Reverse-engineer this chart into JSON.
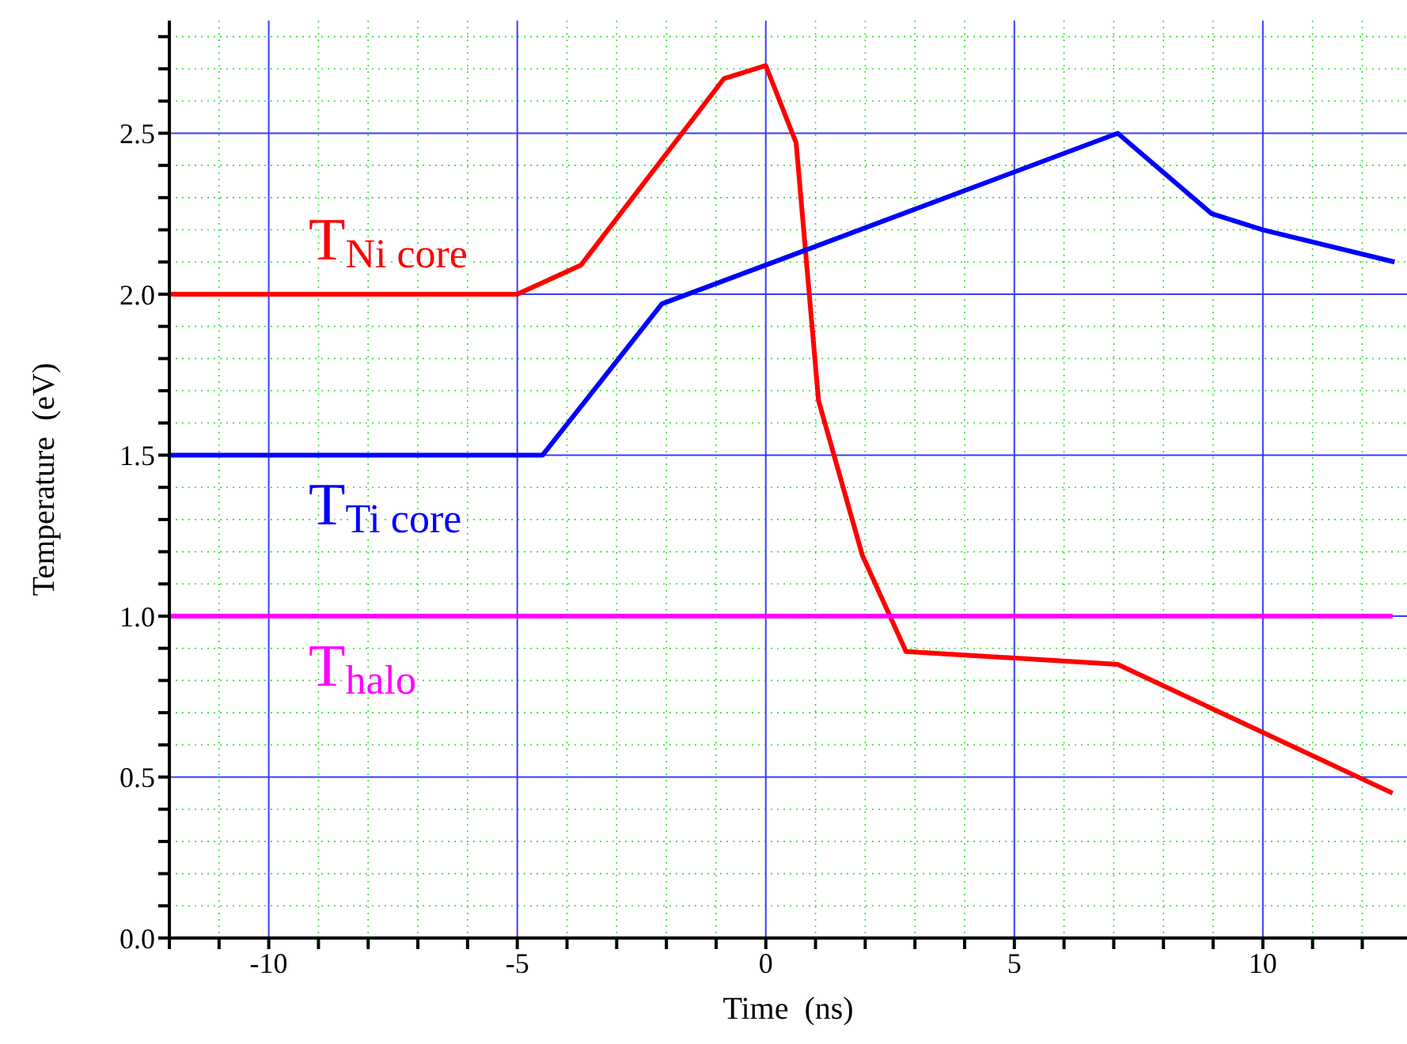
{
  "chart_data": {
    "type": "line",
    "xlabel": "Time  (ns)",
    "ylabel": "Temperature  (eV)",
    "xlim": [
      -12,
      12.9
    ],
    "ylim": [
      0,
      2.85
    ],
    "xticks": [
      {
        "value": -12,
        "label": null
      },
      {
        "value": -11,
        "label": null
      },
      -10,
      {
        "value": -9,
        "label": null
      },
      {
        "value": -8,
        "label": null
      },
      {
        "value": -7,
        "label": null
      },
      {
        "value": -6,
        "label": null
      },
      -5,
      {
        "value": -4,
        "label": null
      },
      {
        "value": -3,
        "label": null
      },
      {
        "value": -2,
        "label": null
      },
      {
        "value": -1,
        "label": null
      },
      0,
      {
        "value": 1,
        "label": null
      },
      {
        "value": 2,
        "label": null
      },
      {
        "value": 3,
        "label": null
      },
      {
        "value": 4,
        "label": null
      },
      5,
      {
        "value": 6,
        "label": null
      },
      {
        "value": 7,
        "label": null
      },
      {
        "value": 8,
        "label": null
      },
      {
        "value": 9,
        "label": null
      },
      10,
      {
        "value": 11,
        "label": null
      },
      {
        "value": 12,
        "label": null
      }
    ],
    "yticks": [
      {
        "value": 0,
        "label": "0.0"
      },
      {
        "value": 0.1,
        "label": null
      },
      {
        "value": 0.2,
        "label": null
      },
      {
        "value": 0.3,
        "label": null
      },
      {
        "value": 0.4,
        "label": null
      },
      0.5,
      {
        "value": 0.6,
        "label": null
      },
      {
        "value": 0.7,
        "label": null
      },
      {
        "value": 0.8,
        "label": null
      },
      {
        "value": 0.9,
        "label": null
      },
      {
        "value": 1,
        "label": "1.0"
      },
      {
        "value": 1.1,
        "label": null
      },
      {
        "value": 1.2,
        "label": null
      },
      {
        "value": 1.3,
        "label": null
      },
      {
        "value": 1.4,
        "label": null
      },
      1.5,
      {
        "value": 1.6,
        "label": null
      },
      {
        "value": 1.7,
        "label": null
      },
      {
        "value": 1.8,
        "label": null
      },
      {
        "value": 1.9,
        "label": null
      },
      {
        "value": 2,
        "label": "2.0"
      },
      {
        "value": 2.1,
        "label": null
      },
      {
        "value": 2.2,
        "label": null
      },
      {
        "value": 2.3,
        "label": null
      },
      {
        "value": 2.4,
        "label": null
      },
      2.5,
      {
        "value": 2.6,
        "label": null
      },
      {
        "value": 2.7,
        "label": null
      },
      {
        "value": 2.8,
        "label": null
      }
    ],
    "grid": true,
    "legend": false,
    "marker": "none",
    "line_style": "solid",
    "series": [
      {
        "name": "T$_{Ni core}$",
        "color": "#ff0000",
        "x": [
          -12,
          -5,
          -3.72,
          -0.84,
          0,
          0.61,
          1.06,
          1.94,
          2.82,
          7.08,
          12.61
        ],
        "values": [
          2.0,
          2.0,
          2.09,
          2.67,
          2.71,
          2.47,
          1.67,
          1.19,
          0.89,
          0.85,
          0.45
        ]
      },
      {
        "name": "T$_{Ti core}$",
        "color": "#0000ff",
        "x": [
          -12,
          -4.49,
          -2.09,
          0.51,
          7.08,
          8.97,
          10.0,
          12.65
        ],
        "values": [
          1.5,
          1.5,
          1.97,
          2.12,
          2.5,
          2.25,
          2.2,
          2.1
        ]
      },
      {
        "name": "T$_{halo}$",
        "color": "#ff00ff",
        "x": [
          -12,
          12.61
        ],
        "values": [
          1.0,
          1.0
        ]
      }
    ]
  }
}
